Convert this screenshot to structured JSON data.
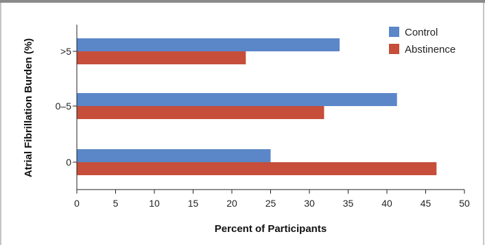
{
  "chart_data": {
    "type": "bar",
    "orientation": "horizontal",
    "categories": [
      ">5",
      "0–5",
      "0"
    ],
    "series": [
      {
        "name": "Control",
        "values": [
          33.9,
          41.3,
          25.0
        ]
      },
      {
        "name": "Abstinence",
        "values": [
          21.8,
          31.9,
          46.4
        ]
      }
    ],
    "xlabel": "Percent of Participants",
    "ylabel": "Atrial Fibrillation Burden (%)",
    "xlim": [
      0,
      50
    ],
    "xticks": [
      "0",
      "5",
      "10",
      "15",
      "20",
      "25",
      "30",
      "35",
      "40",
      "45",
      "50"
    ],
    "grid": false,
    "legend_position": "top-right"
  },
  "colors": {
    "control": "#5b86c8",
    "abstinence": "#c64e3a",
    "frame_top": "#8a8a8a",
    "axis": "#222222"
  }
}
